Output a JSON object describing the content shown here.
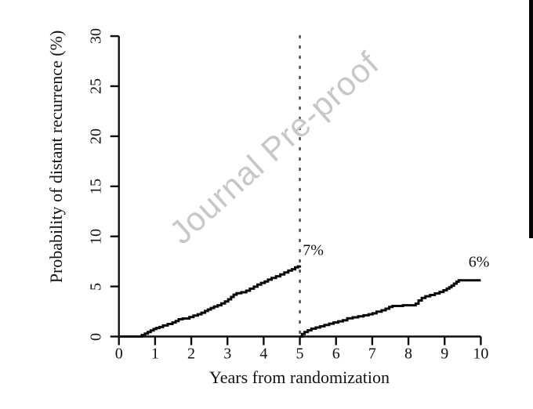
{
  "figure": {
    "watermark": "Journal Pre-proof"
  },
  "chart_data": {
    "type": "line",
    "style": "step-after",
    "title": "",
    "xlabel": "Years from randomization",
    "ylabel": "Probability of distant recurrence (%)",
    "xlim": [
      0,
      10
    ],
    "ylim": [
      0,
      30
    ],
    "x_ticks": [
      "0",
      "1",
      "2",
      "3",
      "4",
      "5",
      "6",
      "7",
      "8",
      "9",
      "10"
    ],
    "x_tick_values": [
      0,
      1,
      2,
      3,
      4,
      5,
      6,
      7,
      8,
      9,
      10
    ],
    "y_ticks": [
      "0",
      "5",
      "10",
      "15",
      "20",
      "25",
      "30"
    ],
    "y_tick_values": [
      0,
      5,
      10,
      15,
      20,
      25,
      30
    ],
    "grid": false,
    "legend": "none",
    "reference_line": {
      "x": 5,
      "style": "dotted",
      "color": "#4d4d4d"
    },
    "line_color": "#0a0a0a",
    "annotations": [
      {
        "text": "7%",
        "x": 5.08,
        "y": 8.55,
        "align": "left"
      },
      {
        "text": "6%",
        "x": 9.95,
        "y": 7.4,
        "align": "center"
      }
    ],
    "series": [
      {
        "name": "years 0-5 segment (cumulative distant recurrence, ends at 7%)",
        "end_label": "7%",
        "points": [
          [
            0,
            0
          ],
          [
            0.63,
            0.15
          ],
          [
            0.72,
            0.3
          ],
          [
            0.8,
            0.45
          ],
          [
            0.88,
            0.6
          ],
          [
            0.96,
            0.75
          ],
          [
            1.03,
            0.85
          ],
          [
            1.12,
            0.95
          ],
          [
            1.22,
            1.1
          ],
          [
            1.35,
            1.25
          ],
          [
            1.48,
            1.4
          ],
          [
            1.57,
            1.55
          ],
          [
            1.65,
            1.72
          ],
          [
            1.76,
            1.8
          ],
          [
            1.95,
            1.95
          ],
          [
            2.06,
            2.1
          ],
          [
            2.18,
            2.22
          ],
          [
            2.28,
            2.38
          ],
          [
            2.38,
            2.55
          ],
          [
            2.46,
            2.7
          ],
          [
            2.54,
            2.85
          ],
          [
            2.63,
            3.0
          ],
          [
            2.73,
            3.12
          ],
          [
            2.83,
            3.3
          ],
          [
            2.93,
            3.5
          ],
          [
            3.02,
            3.72
          ],
          [
            3.1,
            3.95
          ],
          [
            3.17,
            4.18
          ],
          [
            3.25,
            4.32
          ],
          [
            3.38,
            4.42
          ],
          [
            3.52,
            4.58
          ],
          [
            3.62,
            4.78
          ],
          [
            3.73,
            4.98
          ],
          [
            3.83,
            5.18
          ],
          [
            3.93,
            5.35
          ],
          [
            4.03,
            5.5
          ],
          [
            4.12,
            5.68
          ],
          [
            4.22,
            5.85
          ],
          [
            4.34,
            6.02
          ],
          [
            4.46,
            6.2
          ],
          [
            4.57,
            6.4
          ],
          [
            4.68,
            6.58
          ],
          [
            4.78,
            6.72
          ],
          [
            4.87,
            6.9
          ],
          [
            4.95,
            7.0
          ],
          [
            5.0,
            7.1
          ]
        ]
      },
      {
        "name": "years 5-10 segment (cumulative distant recurrence, ends at 6%)",
        "end_label": "6%",
        "points": [
          [
            5,
            0
          ],
          [
            5.06,
            0.25
          ],
          [
            5.13,
            0.45
          ],
          [
            5.22,
            0.62
          ],
          [
            5.32,
            0.78
          ],
          [
            5.44,
            0.9
          ],
          [
            5.56,
            1.02
          ],
          [
            5.68,
            1.15
          ],
          [
            5.81,
            1.28
          ],
          [
            5.93,
            1.4
          ],
          [
            6.06,
            1.52
          ],
          [
            6.19,
            1.62
          ],
          [
            6.31,
            1.82
          ],
          [
            6.46,
            1.92
          ],
          [
            6.61,
            2.02
          ],
          [
            6.76,
            2.12
          ],
          [
            6.9,
            2.22
          ],
          [
            7.01,
            2.32
          ],
          [
            7.12,
            2.48
          ],
          [
            7.26,
            2.62
          ],
          [
            7.37,
            2.78
          ],
          [
            7.47,
            2.95
          ],
          [
            7.56,
            3.05
          ],
          [
            7.85,
            3.12
          ],
          [
            8.2,
            3.28
          ],
          [
            8.28,
            3.6
          ],
          [
            8.37,
            3.85
          ],
          [
            8.47,
            4.02
          ],
          [
            8.6,
            4.15
          ],
          [
            8.73,
            4.3
          ],
          [
            8.86,
            4.45
          ],
          [
            8.97,
            4.62
          ],
          [
            9.06,
            4.78
          ],
          [
            9.13,
            4.92
          ],
          [
            9.19,
            5.08
          ],
          [
            9.26,
            5.28
          ],
          [
            9.33,
            5.48
          ],
          [
            9.39,
            5.62
          ],
          [
            10,
            5.62
          ]
        ]
      }
    ]
  }
}
